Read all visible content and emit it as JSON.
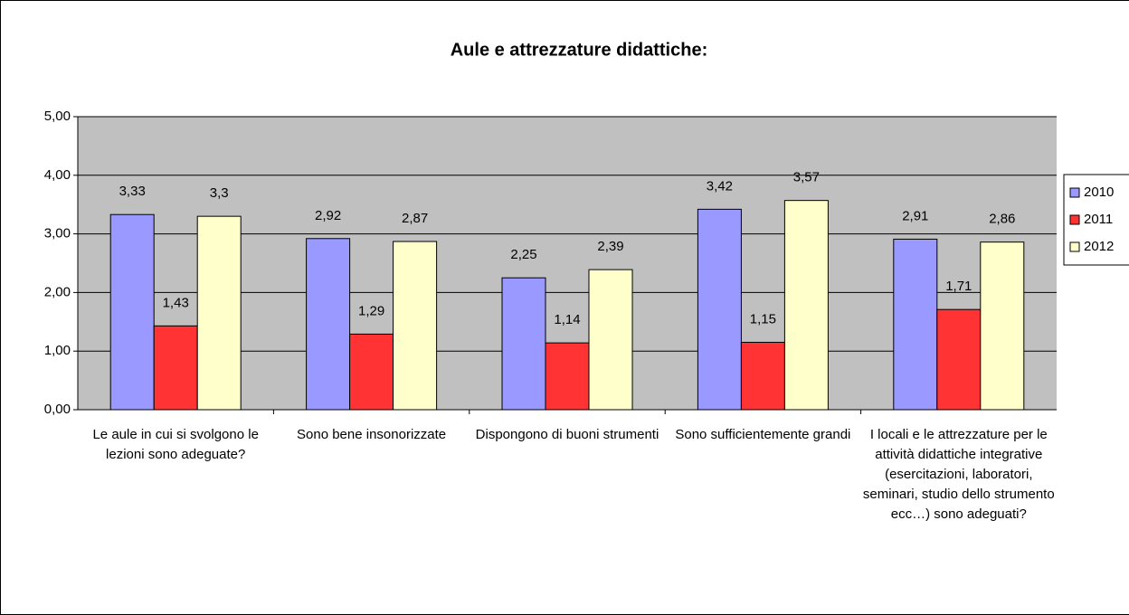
{
  "chart_data": {
    "type": "bar",
    "title": "Aule e attrezzature didattiche:",
    "categories": [
      "Le aule in cui si svolgono le lezioni sono adeguate?",
      "Sono bene insonorizzate",
      "Dispongono di buoni strumenti",
      "Sono sufficientemente grandi",
      "I locali e le attrezzature per le attività didattiche integrative (esercitazioni, laboratori, seminari, studio dello strumento ecc…) sono adeguati?"
    ],
    "series": [
      {
        "name": "2010",
        "color": "#9999ff",
        "values": [
          3.33,
          2.92,
          2.25,
          3.42,
          2.91
        ],
        "value_labels": [
          "3,33",
          "2,92",
          "2,25",
          "3,42",
          "2,91"
        ]
      },
      {
        "name": "2011",
        "color": "#ff3333",
        "values": [
          1.43,
          1.29,
          1.14,
          1.15,
          1.71
        ],
        "value_labels": [
          "1,43",
          "1,29",
          "1,14",
          "1,15",
          "1,71"
        ]
      },
      {
        "name": "2012",
        "color": "#ffffcc",
        "values": [
          3.3,
          2.87,
          2.39,
          3.57,
          2.86
        ],
        "value_labels": [
          "3,3",
          "2,87",
          "2,39",
          "3,57",
          "2,86"
        ]
      }
    ],
    "ylim": [
      0,
      5
    ],
    "yticks": [
      {
        "value": 0,
        "label": "0,00"
      },
      {
        "value": 1,
        "label": "1,00"
      },
      {
        "value": 2,
        "label": "2,00"
      },
      {
        "value": 3,
        "label": "3,00"
      },
      {
        "value": 4,
        "label": "4,00"
      },
      {
        "value": 5,
        "label": "5,00"
      }
    ],
    "grid": true,
    "legend": "right"
  }
}
